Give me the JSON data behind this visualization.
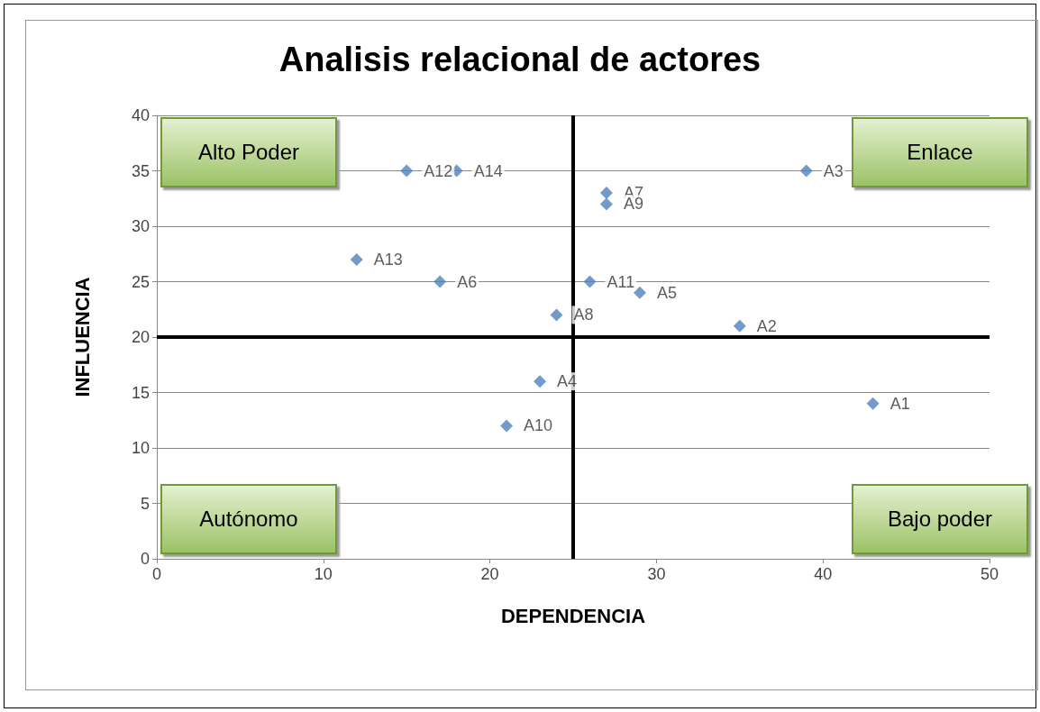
{
  "chart_data": {
    "type": "scatter",
    "title": "Analisis relacional de actores",
    "xlabel": "DEPENDENCIA",
    "ylabel": "INFLUENCIA",
    "x": [
      43,
      35,
      39,
      23,
      29,
      17,
      27,
      24,
      27,
      21,
      26,
      15,
      12,
      18
    ],
    "values": [
      14,
      21,
      35,
      16,
      24,
      25,
      33,
      22,
      32,
      12,
      25,
      35,
      27,
      35
    ],
    "value_labels": [
      "A1",
      "A2",
      "A3",
      "A4",
      "A5",
      "A6",
      "A7",
      "A8",
      "A9",
      "A10",
      "A11",
      "A12",
      "A13",
      "A14"
    ],
    "color": "#4f81bd",
    "marker": "diamond",
    "grid": "y",
    "xlim": [
      0,
      50
    ],
    "xticks": [
      0,
      10,
      20,
      30,
      40,
      50
    ],
    "ylim": [
      0,
      40
    ],
    "yticks": [
      0,
      5,
      10,
      15,
      20,
      25,
      30,
      35,
      40
    ],
    "ref_lines": [
      {
        "axis": "x",
        "value": 25,
        "color": "#000000"
      },
      {
        "axis": "y",
        "value": 20,
        "color": "#000000"
      }
    ],
    "annotations": [
      "Alto Poder",
      "Enlace",
      "Autónomo",
      "Bajo poder"
    ]
  }
}
